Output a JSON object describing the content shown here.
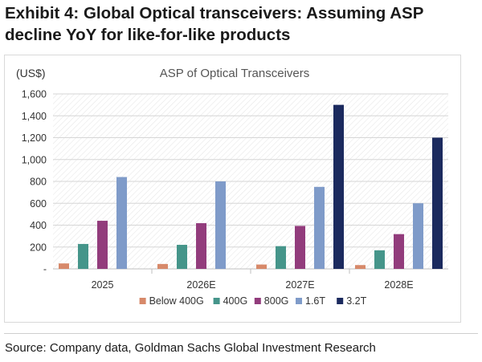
{
  "exhibit": {
    "title": "Exhibit 4: Global Optical transceivers: Assuming ASP decline YoY for like-for-like products"
  },
  "source": "Source: Company data, Goldman Sachs Global Investment Research",
  "chart_data": {
    "type": "bar",
    "title": "ASP of Optical Transceivers",
    "ylabel": "(US$)",
    "xlabel": "",
    "categories": [
      "2025",
      "2026E",
      "2027E",
      "2028E"
    ],
    "ylim": [
      0,
      1600
    ],
    "yticks": [
      0,
      200,
      400,
      600,
      800,
      1000,
      1200,
      1400,
      1600
    ],
    "ytick_labels": [
      "-",
      "200",
      "400",
      "600",
      "800",
      "1,000",
      "1,200",
      "1,400",
      "1,600"
    ],
    "grid": true,
    "legend": "bottom",
    "series": [
      {
        "name": "Below 400G",
        "color": "#d7896a",
        "values": [
          50,
          45,
          40,
          35
        ]
      },
      {
        "name": "400G",
        "color": "#45958a",
        "values": [
          228,
          220,
          208,
          170
        ]
      },
      {
        "name": "800G",
        "color": "#923c7c",
        "values": [
          440,
          418,
          393,
          318
        ]
      },
      {
        "name": "1.6T",
        "color": "#7f9bc9",
        "values": [
          840,
          800,
          750,
          600
        ]
      },
      {
        "name": "3.2T",
        "color": "#1b2a5e",
        "values": [
          0,
          0,
          1500,
          1200
        ]
      }
    ]
  }
}
